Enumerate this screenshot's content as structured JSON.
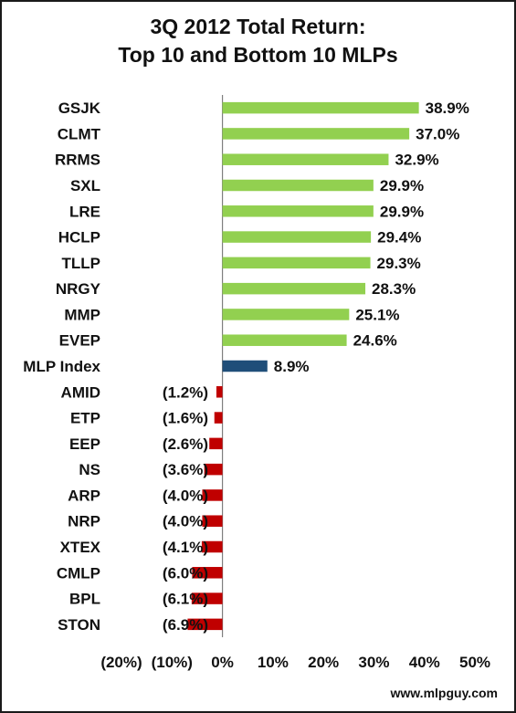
{
  "chart_data": {
    "type": "bar",
    "orientation": "horizontal",
    "title": [
      "3Q 2012 Total Return:",
      "Top 10 and Bottom 10 MLPs"
    ],
    "categories": [
      "GSJK",
      "CLMT",
      "RRMS",
      "SXL",
      "LRE",
      "HCLP",
      "TLLP",
      "NRGY",
      "MMP",
      "EVEP",
      "MLP Index",
      "AMID",
      "ETP",
      "EEP",
      "NS",
      "ARP",
      "NRP",
      "XTEX",
      "CMLP",
      "BPL",
      "STON"
    ],
    "values": [
      38.9,
      37.0,
      32.9,
      29.9,
      29.9,
      29.4,
      29.3,
      28.3,
      25.1,
      24.6,
      8.9,
      -1.2,
      -1.6,
      -2.6,
      -3.6,
      -4.0,
      -4.0,
      -4.1,
      -6.0,
      -6.1,
      -6.9
    ],
    "value_labels": [
      "38.9%",
      "37.0%",
      "32.9%",
      "29.9%",
      "29.9%",
      "29.4%",
      "29.3%",
      "28.3%",
      "25.1%",
      "24.6%",
      "8.9%",
      "(1.2%)",
      "(1.6%)",
      "(2.6%)",
      "(3.6%)",
      "(4.0%)",
      "(4.0%)",
      "(4.1%)",
      "(6.0%)",
      "(6.1%)",
      "(6.9%)"
    ],
    "xlim": [
      -20,
      50
    ],
    "xticks": [
      -20,
      -10,
      0,
      10,
      20,
      30,
      40,
      50
    ],
    "xtick_labels": [
      "(20%)",
      "(10%)",
      "0%",
      "10%",
      "20%",
      "30%",
      "40%",
      "50%"
    ],
    "grid": false,
    "legend": "none",
    "colors": {
      "positive": "#92d050",
      "index": "#1f4e79",
      "negative": "#c00000"
    }
  },
  "watermark": "www.mlpguy.com"
}
